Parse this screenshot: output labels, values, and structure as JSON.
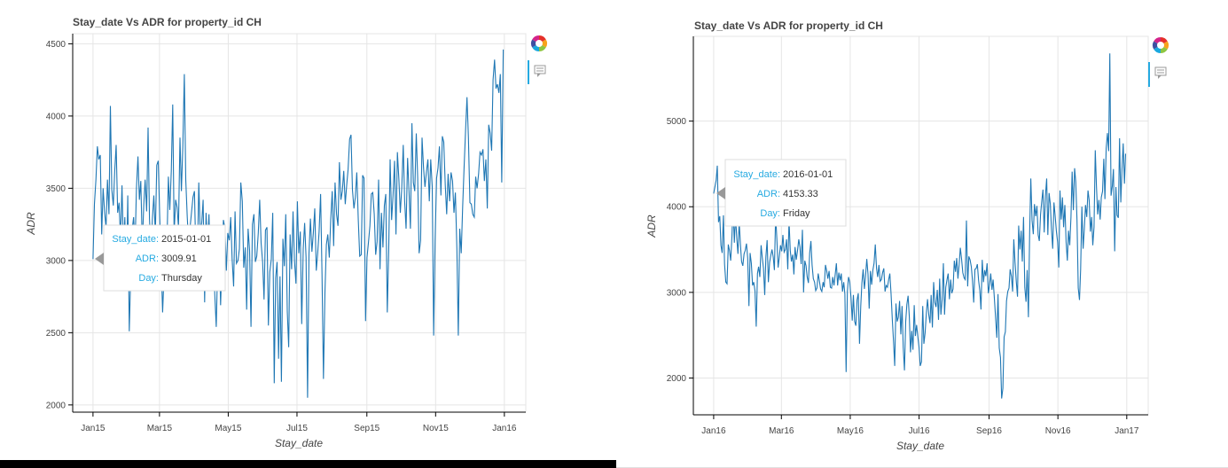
{
  "chart_data": [
    {
      "type": "line",
      "title": "Stay_date Vs ADR for property_id CH",
      "xlabel": "Stay_date",
      "ylabel": "ADR",
      "x_start": "2015-01-01",
      "x_end": "2015-12-31",
      "xlim": [
        "2014-12-14",
        "2016-01-20"
      ],
      "ylim": [
        1950,
        4570
      ],
      "yticks": [
        2000,
        2500,
        3000,
        3500,
        4000,
        4500
      ],
      "xticks": [
        {
          "date": "2015-01-01",
          "label": "Jan15"
        },
        {
          "date": "2015-03-01",
          "label": "Mar15"
        },
        {
          "date": "2015-05-01",
          "label": "May15"
        },
        {
          "date": "2015-07-01",
          "label": "Jul15"
        },
        {
          "date": "2015-09-01",
          "label": "Sep15"
        },
        {
          "date": "2015-11-01",
          "label": "Nov15"
        },
        {
          "date": "2016-01-01",
          "label": "Jan16"
        }
      ],
      "grid": true,
      "color": "#1f77b4",
      "series_y": [
        3009.91,
        3390,
        3560,
        3790,
        3700,
        3730,
        3180,
        3500,
        3330,
        3230,
        3560,
        3320,
        4070,
        3490,
        3380,
        3620,
        3800,
        3330,
        3400,
        3150,
        3520,
        3080,
        3300,
        2840,
        3450,
        2510,
        2900,
        3210,
        3300,
        3090,
        3500,
        3720,
        3420,
        3550,
        3100,
        3380,
        3560,
        3340,
        3920,
        3290,
        3050,
        3290,
        3450,
        3180,
        3660,
        3690,
        3310,
        3000,
        2640,
        2900,
        3210,
        3110,
        3580,
        3350,
        3620,
        4080,
        3190,
        3420,
        3370,
        3230,
        3850,
        3480,
        3790,
        4290,
        3560,
        3300,
        3110,
        3230,
        3340,
        3440,
        3480,
        3020,
        2980,
        3540,
        3180,
        3260,
        3420,
        2710,
        3330,
        3090,
        3320,
        2880,
        3020,
        3170,
        2770,
        2540,
        2980,
        3160,
        2690,
        3020,
        3280,
        3220,
        2930,
        3190,
        3140,
        3300,
        3010,
        2820,
        3340,
        2980,
        3000,
        3080,
        3540,
        3410,
        2950,
        3090,
        2660,
        3220,
        3070,
        2540,
        3250,
        3320,
        2990,
        3030,
        3190,
        3420,
        3120,
        2990,
        2730,
        3210,
        3230,
        2550,
        2920,
        3010,
        3330,
        2150,
        2880,
        2990,
        2320,
        2890,
        2160,
        3150,
        2960,
        3320,
        2650,
        2400,
        3180,
        2940,
        3340,
        3000,
        2840,
        3410,
        3050,
        3200,
        2560,
        3080,
        3260,
        3020,
        2050,
        3050,
        3290,
        3060,
        3190,
        3360,
        2930,
        3050,
        3200,
        3460,
        2900,
        2180,
        2780,
        3110,
        3180,
        3020,
        3280,
        3480,
        3100,
        3540,
        3320,
        3240,
        3680,
        3420,
        3480,
        3620,
        3390,
        3520,
        3630,
        3840,
        3870,
        3490,
        3360,
        3440,
        3610,
        3280,
        3030,
        3040,
        3590,
        3570,
        2580,
        3020,
        3120,
        3240,
        3460,
        3470,
        3320,
        3040,
        3130,
        3560,
        2940,
        3330,
        3090,
        3380,
        3460,
        2640,
        3070,
        3700,
        3280,
        3450,
        3690,
        3180,
        3750,
        3560,
        3330,
        3500,
        3800,
        3410,
        3220,
        3710,
        3480,
        3220,
        3950,
        3540,
        3480,
        3880,
        3570,
        3050,
        3140,
        3850,
        3640,
        3510,
        3610,
        3700,
        3410,
        3700,
        3510,
        2480,
        3130,
        3570,
        3640,
        3790,
        3450,
        3860,
        3820,
        3520,
        3320,
        3600,
        3410,
        3610,
        3550,
        3330,
        3470,
        3080,
        2480,
        3220,
        3050,
        3370,
        3640,
        3900,
        4130,
        3850,
        3400,
        3390,
        3320,
        3300,
        3580,
        3500,
        3600,
        3750,
        3730,
        3770,
        3550,
        3700,
        3360,
        3940,
        3880,
        3760,
        4250,
        4390,
        4190,
        4220,
        4160,
        4290,
        3540,
        4460
      ],
      "tooltip": {
        "keys": [
          "Stay_date:",
          "ADR:",
          "Day:"
        ],
        "values": [
          "2015-01-01",
          "3009.91",
          "Thursday"
        ],
        "anchor_date": "2015-01-01",
        "anchor_value": 3009.91
      }
    },
    {
      "type": "line",
      "title": "Stay_date Vs ADR for property_id CH",
      "xlabel": "Stay_date",
      "ylabel": "ADR",
      "x_start": "2016-01-01",
      "x_end": "2016-12-31",
      "xlim": [
        "2015-12-14",
        "2017-01-20"
      ],
      "ylim": [
        1570,
        5990
      ],
      "yticks": [
        2000,
        3000,
        4000,
        5000
      ],
      "xticks": [
        {
          "date": "2016-01-01",
          "label": "Jan16"
        },
        {
          "date": "2016-03-01",
          "label": "Mar16"
        },
        {
          "date": "2016-05-01",
          "label": "May16"
        },
        {
          "date": "2016-07-01",
          "label": "Jul16"
        },
        {
          "date": "2016-09-01",
          "label": "Sep16"
        },
        {
          "date": "2016-11-01",
          "label": "Nov16"
        },
        {
          "date": "2017-01-01",
          "label": "Jan17"
        }
      ],
      "grid": true,
      "color": "#1f77b4",
      "series_y": [
        4153.33,
        4230,
        4310,
        4480,
        3820,
        3890,
        3550,
        3460,
        3900,
        3330,
        3120,
        3100,
        3560,
        3490,
        3370,
        3650,
        4020,
        3580,
        3890,
        3630,
        3450,
        3820,
        3560,
        3360,
        3310,
        3450,
        3490,
        3570,
        3400,
        2840,
        3460,
        3340,
        3080,
        3120,
        3020,
        2600,
        3220,
        3300,
        3180,
        3550,
        3410,
        3280,
        2970,
        3410,
        3610,
        3120,
        3350,
        3430,
        3500,
        3410,
        3260,
        3900,
        3620,
        3290,
        3410,
        3550,
        3480,
        3670,
        3470,
        3500,
        3620,
        3270,
        3840,
        3490,
        3360,
        3440,
        3210,
        3530,
        3380,
        3490,
        3620,
        3530,
        3330,
        3730,
        3000,
        3370,
        3310,
        3180,
        3110,
        3460,
        3600,
        3320,
        3160,
        3120,
        3020,
        3050,
        3220,
        3130,
        3040,
        3010,
        3120,
        3060,
        3320,
        3250,
        3160,
        3250,
        3060,
        3050,
        3180,
        3080,
        3210,
        3340,
        3080,
        3230,
        3140,
        3220,
        3010,
        3120,
        2980,
        2070,
        3010,
        3180,
        3120,
        2940,
        2670,
        2970,
        2660,
        2610,
        2910,
        2990,
        2400,
        2840,
        3110,
        3270,
        3040,
        3190,
        3390,
        3210,
        2810,
        3250,
        3090,
        3260,
        3340,
        3560,
        3280,
        3180,
        3320,
        3130,
        3150,
        3230,
        3280,
        3010,
        3080,
        3060,
        3150,
        3220,
        2980,
        2680,
        2420,
        2140,
        2870,
        2660,
        2710,
        2900,
        2510,
        2840,
        2360,
        2090,
        2660,
        2860,
        2960,
        2710,
        2300,
        2550,
        2330,
        2850,
        2490,
        2620,
        2480,
        2360,
        2140,
        2190,
        2840,
        2400,
        2530,
        2760,
        2920,
        2740,
        2640,
        2970,
        2590,
        3120,
        2880,
        2830,
        3030,
        2680,
        3160,
        2740,
        2920,
        3340,
        2740,
        3060,
        3150,
        3220,
        2920,
        3150,
        2990,
        3040,
        3370,
        3240,
        3400,
        3160,
        3330,
        3520,
        3390,
        3230,
        3170,
        3150,
        3840,
        3070,
        3420,
        3380,
        3300,
        3140,
        2880,
        3270,
        3280,
        3330,
        3140,
        3020,
        2800,
        3380,
        3120,
        3260,
        3190,
        3340,
        2990,
        3080,
        3220,
        3030,
        3150,
        2930,
        2700,
        2470,
        2980,
        2350,
        2240,
        1760,
        1880,
        2480,
        2540,
        2900,
        3010,
        3050,
        3270,
        3190,
        3010,
        3620,
        3350,
        3130,
        2950,
        3780,
        3500,
        3720,
        3360,
        3880,
        3060,
        2890,
        3260,
        2710,
        3700,
        4330,
        3840,
        3680,
        4030,
        3890,
        4010,
        3670,
        3600,
        3910,
        4070,
        4200,
        3700,
        4130,
        4330,
        3670,
        4160,
        4030,
        3740,
        3510,
        4050,
        3900,
        3720,
        3590,
        3290,
        4190,
        3850,
        4110,
        3760,
        4020,
        3590,
        3370,
        3720,
        3550,
        3880,
        4410,
        3960,
        4450,
        4290,
        3840,
        3050,
        2910,
        3270,
        4000,
        3510,
        3730,
        4020,
        3880,
        4190,
        4080,
        3710,
        3880,
        3550,
        3760,
        4660,
        4250,
        3910,
        4080,
        3850,
        4110,
        4180,
        4560,
        4090,
        4680,
        4860,
        4650,
        5790,
        4130,
        4240,
        4440,
        3480,
        4230,
        3900,
        3870,
        4800,
        4050,
        4430,
        4740,
        4270,
        4620
      ],
      "tooltip": {
        "keys": [
          "Stay_date:",
          "ADR:",
          "Day:"
        ],
        "values": [
          "2016-01-01",
          "4153.33",
          "Friday"
        ],
        "anchor_date": "2016-01-01",
        "anchor_value": 4153.33
      }
    }
  ]
}
